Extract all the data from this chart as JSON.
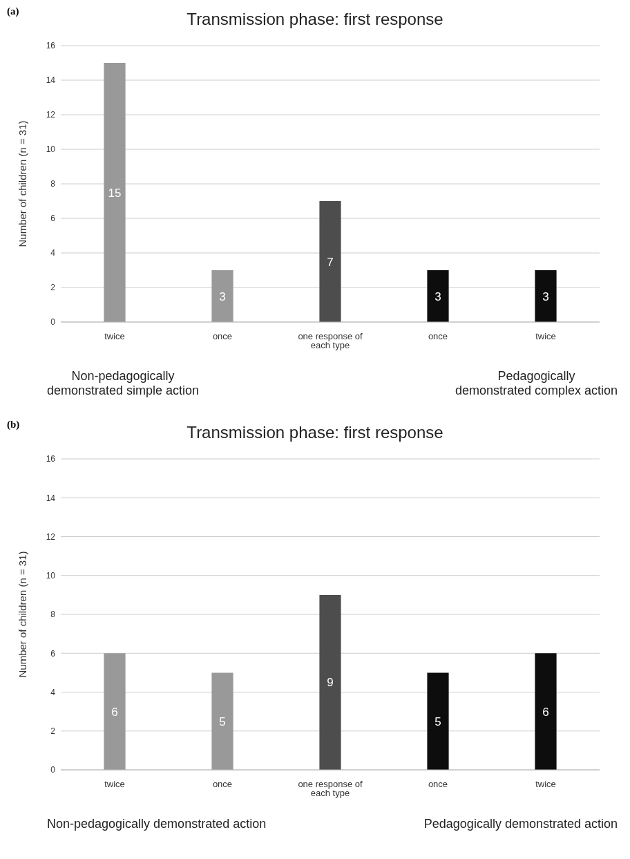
{
  "chart_data": [
    {
      "type": "bar",
      "title": "Transmission phase: first response",
      "ylabel": "Number of children (n = 31)",
      "categories": [
        "twice",
        "once",
        "one response of each type",
        "once",
        "twice"
      ],
      "values": [
        15,
        3,
        7,
        3,
        3
      ],
      "colors": [
        "#999999",
        "#999999",
        "#4d4d4d",
        "#0d0d0d",
        "#0d0d0d"
      ],
      "ylim": [
        0,
        16
      ],
      "yticks": [
        0,
        2,
        4,
        6,
        8,
        10,
        12,
        14,
        16
      ],
      "grid": "y",
      "data_labels": true,
      "annotations": [
        "(a)",
        "Non-pedagogically\ndemonstrated simple action",
        "Pedagogically\ndemonstrated complex action"
      ]
    },
    {
      "type": "bar",
      "title": "Transmission phase: first response",
      "ylabel": "Number of children (n = 31)",
      "categories": [
        "twice",
        "once",
        "one response of each type",
        "once",
        "twice"
      ],
      "values": [
        6,
        5,
        9,
        5,
        6
      ],
      "colors": [
        "#999999",
        "#999999",
        "#4d4d4d",
        "#0d0d0d",
        "#0d0d0d"
      ],
      "ylim": [
        0,
        16
      ],
      "yticks": [
        0,
        2,
        4,
        6,
        8,
        10,
        12,
        14,
        16
      ],
      "grid": "y",
      "data_labels": true,
      "annotations": [
        "(b)",
        "Non-pedagogically demonstrated action",
        "Pedagogically demonstrated action"
      ]
    }
  ]
}
